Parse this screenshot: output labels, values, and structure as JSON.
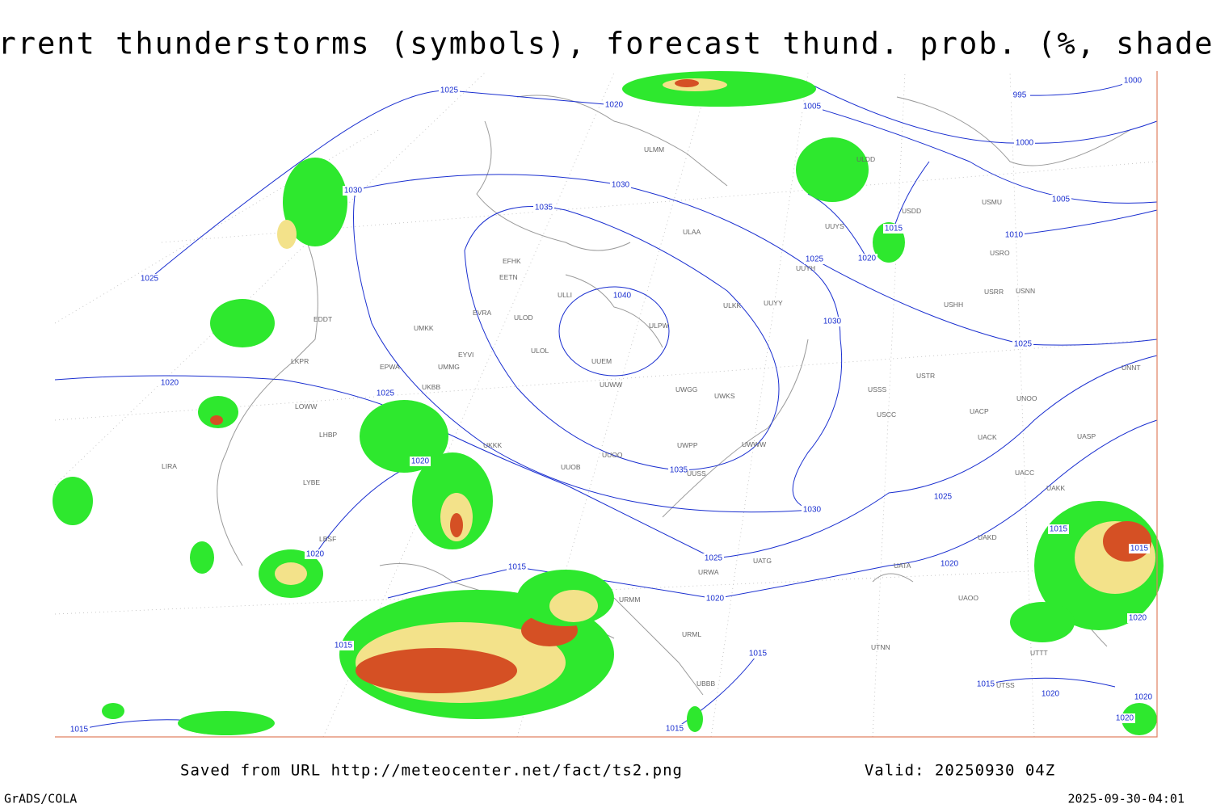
{
  "header": {
    "title": "Current thunderstorms (symbols), forecast thund. prob. (%, shaded)"
  },
  "footer": {
    "source": "Saved from URL http://meteocenter.net/fact/ts2.png",
    "valid": "Valid: 20250930 04Z",
    "software": "GrADS/COLA",
    "timestamp": "2025-09-30-04:01"
  },
  "isobar_labels": [
    1025,
    1020,
    1005,
    995,
    1000,
    1000,
    1005,
    1010,
    1030,
    1030,
    1035,
    1040,
    1025,
    1020,
    1015,
    1030,
    1025,
    1025,
    1020,
    1025,
    1020,
    1035,
    1030,
    1025,
    1025,
    1020,
    1015,
    1020,
    1020,
    1015,
    1015,
    1015,
    1015,
    1020,
    1015,
    1020,
    1020,
    1020,
    1015,
    1015
  ],
  "stations": [
    "ULMM",
    "ULDD",
    "USDD",
    "UUYS",
    "ULAA",
    "EFHK",
    "EETN",
    "EVRA",
    "ULOD",
    "ULLI",
    "ULPW",
    "UUYH",
    "ULKK",
    "UUYY",
    "EDDT",
    "UMKK",
    "EYVI",
    "UMMG",
    "ULOL",
    "UUEM",
    "EPWA",
    "UUWW",
    "UWGG",
    "UWKS",
    "UKBB",
    "LKPR",
    "LOWW",
    "LHBP",
    "UKKK",
    "UUOO",
    "UWPP",
    "UWWW",
    "UUOB",
    "UUSS",
    "URWA",
    "UATG",
    "UATA",
    "USSS",
    "USCC",
    "USTR",
    "UNOO",
    "UACP",
    "UACK",
    "UASP",
    "UACC",
    "UAKK",
    "UAKD",
    "UAOO",
    "UTNN",
    "URMM",
    "URML",
    "UBBB",
    "UTTT",
    "UTSS",
    "LIRA",
    "LYBE",
    "LBSF",
    "UNNT",
    "USMU",
    "USRO",
    "USRR",
    "USNN",
    "USHH"
  ]
}
